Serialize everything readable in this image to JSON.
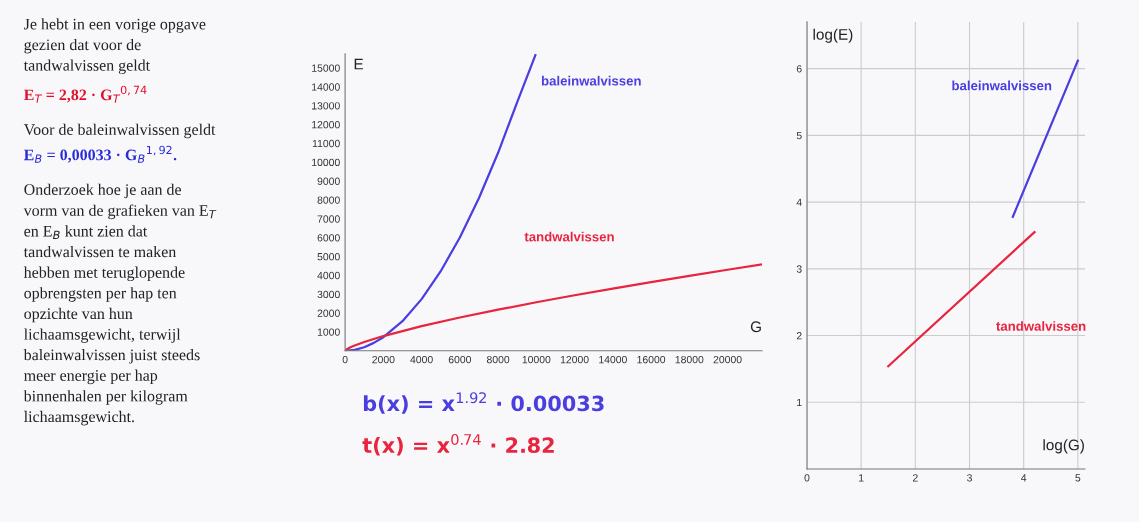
{
  "chart_data": [
    {
      "type": "other",
      "annotations": [
        "Je hebt in een vorige opgave\ngezien dat voor de\ntandwalvissen geldt",
        "E$_{T}$ = 2,82 · G$_{T}$$^{0,74}$",
        "Voor de baleinwalvissen geldt",
        "E$_{B}$ = 0,00033 · G$_{B}$$^{1,92}$.",
        "Onderzoek hoe je aan de\nvorm van de grafieken van E$_{T}$\nen E$_{B}$ kunt zien dat\ntandwalvissen te maken\nhebben met teruglopende\nopbrengsten per hap ten\nopzichte van hun\nlichaamsgewicht, terwijl\nbaleinwalvissen juist steeds\nmeer energie per hap\nbinnenhalen per kilogram\nlichaamsgewicht."
      ],
      "colors": [
        "#222222",
        "#e0102e",
        "#222222",
        "#2a2ad8",
        "#222222"
      ]
    },
    {
      "type": "line",
      "xlabel": "G",
      "ylabel": "E",
      "xlim": [
        0,
        21800
      ],
      "ylim": [
        0,
        15750
      ],
      "xticks": [
        0,
        2000,
        4000,
        6000,
        8000,
        10000,
        12000,
        14000,
        16000,
        18000,
        20000
      ],
      "yticks": [
        1000,
        2000,
        3000,
        4000,
        5000,
        6000,
        7000,
        8000,
        9000,
        10000,
        11000,
        12000,
        13000,
        14000,
        15000
      ],
      "grid": false,
      "series": [
        {
          "name": "baleinwalvissen",
          "color": "#4a3ee0",
          "x": [
            0,
            500,
            1000,
            1500,
            2000,
            3000,
            4000,
            5000,
            6000,
            7000,
            8000,
            9000,
            9950
          ],
          "values": [
            0,
            50,
            190,
            420,
            720,
            1570,
            2740,
            4220,
            6010,
            8100,
            10500,
            13190,
            15680
          ]
        },
        {
          "name": "tandwalvissen",
          "color": "#e8243f",
          "x": [
            0,
            100,
            250,
            500,
            1000,
            2000,
            4000,
            6000,
            8000,
            10000,
            12000,
            14000,
            16000,
            18000,
            20000,
            21800
          ],
          "values": [
            0,
            85,
            170,
            280,
            468,
            781,
            1306,
            1763,
            2180,
            2572,
            2944,
            3300,
            3640,
            3973,
            4298,
            4582
          ]
        }
      ],
      "annotations": [
        "b(x) = x$^{1.92}$ · 0.00033",
        "t(x) = x$^{0.74}$ · 2.82"
      ]
    },
    {
      "type": "line",
      "xlabel": "log(G)",
      "ylabel": "log(E)",
      "xlim": [
        0,
        5.13
      ],
      "ylim": [
        0,
        6.7
      ],
      "xticks": [
        0,
        1,
        2,
        3,
        4,
        5
      ],
      "yticks": [
        1,
        2,
        3,
        4,
        5,
        6
      ],
      "grid": true,
      "series": [
        {
          "name": "baleinwalvissen",
          "color": "#4a3ee0",
          "x": [
            3.8,
            5.0
          ],
          "values": [
            3.78,
            6.12
          ]
        },
        {
          "name": "tandwalvissen",
          "color": "#e8243f",
          "x": [
            1.5,
            4.2
          ],
          "values": [
            1.54,
            3.55
          ]
        }
      ]
    }
  ]
}
